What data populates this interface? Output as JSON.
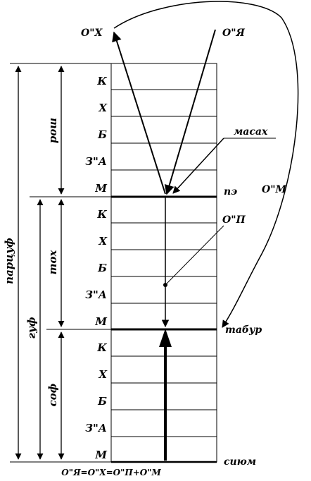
{
  "rows": [
    "К",
    "Х",
    "Б",
    "З\"А",
    "М"
  ],
  "left_labels": {
    "outer": "парцуф",
    "middle": "гуф",
    "top_inner": "рош",
    "mid_inner": "тох",
    "bottom_inner": "соф"
  },
  "top_labels": {
    "left_arrow": "О\"Х",
    "right_arrow": "О\"Я"
  },
  "callouts": {
    "masakh": "масах",
    "pe": "пэ",
    "op": "О\"П",
    "om": "О\"М",
    "tabur": "табур",
    "sium": "сиюм"
  },
  "formula": "О\"Я=О\"Х=О\"П+О\"М"
}
